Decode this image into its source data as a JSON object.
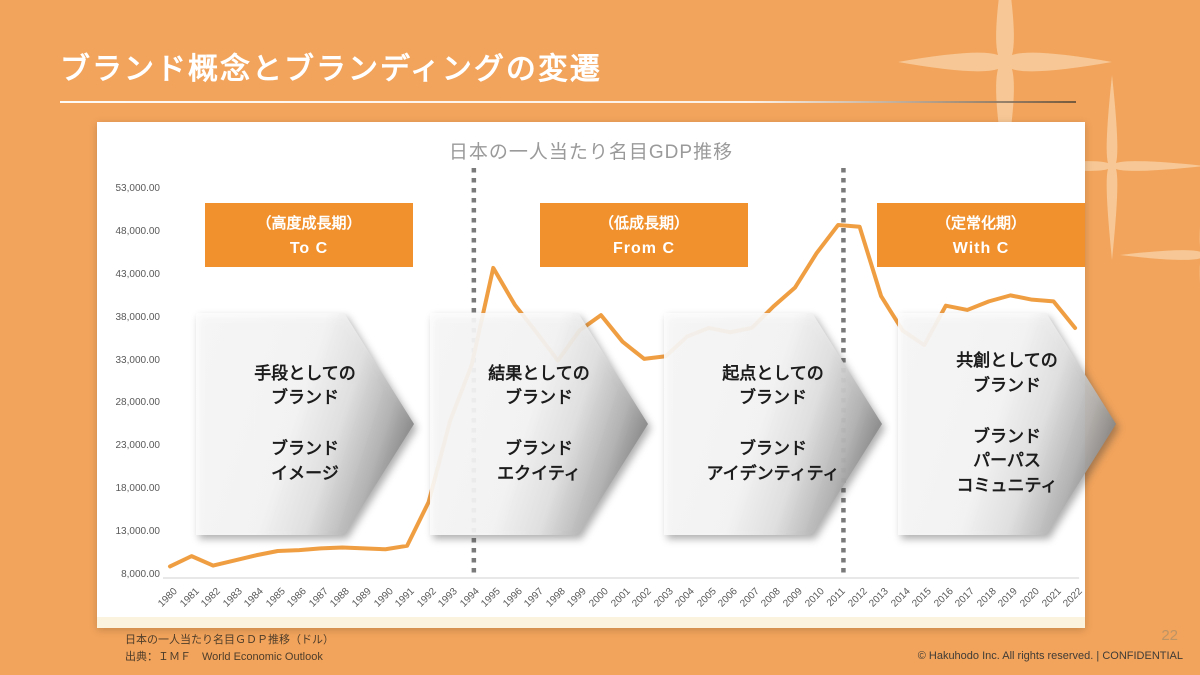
{
  "slide": {
    "title": "ブランド概念とブランディングの変遷",
    "page_number": "22",
    "copyright": "© Hakuhodo Inc. All rights reserved. | CONFIDENTIAL",
    "source_note": [
      "日本の一人当たり名目ＧＤＰ推移（ドル）",
      "出典：ＩＭＦ　World Economic Outlook"
    ]
  },
  "eras": [
    {
      "period": "（高度成長期）",
      "label": "To C"
    },
    {
      "period": "（低成長期）",
      "label": "From C"
    },
    {
      "period": "（定常化期）",
      "label": "With C"
    }
  ],
  "stages": [
    {
      "role": [
        "手段としての",
        "ブランド"
      ],
      "concept": [
        "ブランド",
        "イメージ"
      ]
    },
    {
      "role": [
        "結果としての",
        "ブランド"
      ],
      "concept": [
        "ブランド",
        "エクイティ"
      ]
    },
    {
      "role": [
        "起点としての",
        "ブランド"
      ],
      "concept": [
        "ブランド",
        "アイデンティティ"
      ]
    },
    {
      "role": [
        "共創としての",
        "ブランド"
      ],
      "concept": [
        "ブランド",
        "パーパス",
        "コミュニティ"
      ]
    }
  ],
  "chart_data": {
    "type": "line",
    "title": "日本の一人当たり名目GDP推移",
    "xlabel": "",
    "ylabel": "",
    "x": [
      1980,
      1981,
      1982,
      1983,
      1984,
      1985,
      1986,
      1987,
      1988,
      1989,
      1990,
      1991,
      1992,
      1993,
      1994,
      1995,
      1996,
      1997,
      1998,
      1999,
      2000,
      2001,
      2002,
      2003,
      2004,
      2005,
      2006,
      2007,
      2008,
      2009,
      2010,
      2011,
      2012,
      2013,
      2014,
      2015,
      2016,
      2017,
      2018,
      2019,
      2020,
      2021,
      2022
    ],
    "values": [
      9000,
      10200,
      9100,
      9700,
      10300,
      10800,
      10900,
      11100,
      11200,
      11100,
      11000,
      11400,
      16500,
      26000,
      32500,
      43800,
      39500,
      36300,
      33000,
      36500,
      38300,
      35200,
      33200,
      33500,
      35800,
      36800,
      36300,
      36800,
      39300,
      41500,
      45500,
      48800,
      48600,
      40500,
      36500,
      34800,
      39400,
      38900,
      39900,
      40600,
      40100,
      39900,
      36800
    ],
    "ylim": [
      8000,
      53000
    ],
    "y_tick_step": 5000,
    "y_tick_labels": [
      "8,000.00",
      "13,000.00",
      "18,000.00",
      "23,000.00",
      "28,000.00",
      "33,000.00",
      "38,000.00",
      "43,000.00",
      "48,000.00",
      "53,000.00"
    ],
    "era_divider_years": [
      1994.1,
      2011.25
    ],
    "grid": false,
    "legend": "none"
  },
  "colors": {
    "background": "#F2A45C",
    "card": "#FFFFFF",
    "era_box": "#F0912D",
    "line": "#F09E42",
    "divider": "#7a7a7a",
    "axis": "#d0d0d0",
    "sparkle": "#F7C795",
    "title_text": "#FFFFFF",
    "chart_title_text": "#9A9A9A"
  }
}
